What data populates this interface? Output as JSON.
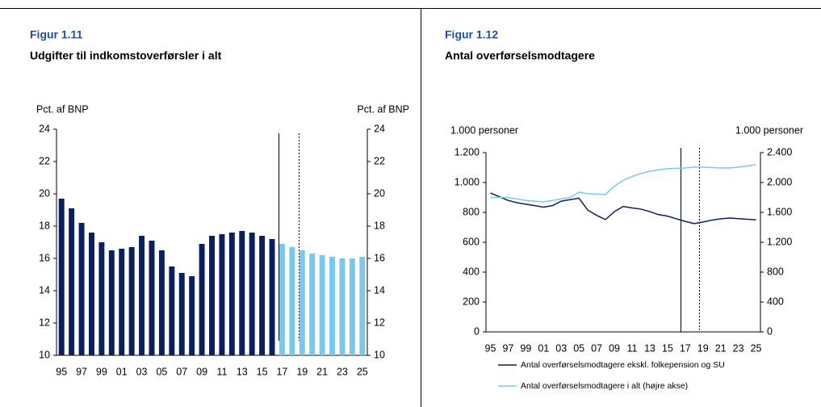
{
  "chart_data": [
    {
      "type": "bar",
      "label": "Figur 1.11",
      "title": "Udgifter til indkomstoverførsler i alt",
      "y_label": "Pct. af BNP",
      "y2_label": "Pct. af BNP",
      "categories": [
        "95",
        null,
        "97",
        null,
        "99",
        null,
        "01",
        null,
        "03",
        null,
        "05",
        null,
        "07",
        null,
        "09",
        null,
        "11",
        null,
        "13",
        null,
        "15",
        null,
        "17",
        null,
        "19",
        null,
        "21",
        null,
        "23",
        null,
        "25"
      ],
      "values": [
        19.7,
        19.1,
        18.2,
        17.6,
        17.0,
        16.5,
        16.6,
        16.7,
        17.4,
        17.1,
        16.5,
        15.5,
        15.1,
        14.9,
        16.9,
        17.4,
        17.5,
        17.6,
        17.7,
        17.6,
        17.4,
        17.2,
        16.9,
        16.7,
        16.5,
        16.3,
        16.2,
        16.1,
        16.0,
        16.0,
        16.1
      ],
      "colors": [
        "#0b1f5e",
        "#0b1f5e",
        "#0b1f5e",
        "#0b1f5e",
        "#0b1f5e",
        "#0b1f5e",
        "#0b1f5e",
        "#0b1f5e",
        "#0b1f5e",
        "#0b1f5e",
        "#0b1f5e",
        "#0b1f5e",
        "#0b1f5e",
        "#0b1f5e",
        "#0b1f5e",
        "#0b1f5e",
        "#0b1f5e",
        "#0b1f5e",
        "#0b1f5e",
        "#0b1f5e",
        "#0b1f5e",
        "#0b1f5e",
        "#7cc8ea",
        "#7cc8ea",
        "#7cc8ea",
        "#7cc8ea",
        "#7cc8ea",
        "#7cc8ea",
        "#7cc8ea",
        "#7cc8ea",
        "#7cc8ea"
      ],
      "ylim": [
        10,
        24
      ],
      "yticks": [
        10,
        12,
        14,
        16,
        18,
        20,
        22,
        24
      ],
      "y2lim": [
        10,
        24
      ],
      "y2ticks": [
        10,
        12,
        14,
        16,
        18,
        20,
        22,
        24
      ]
    },
    {
      "type": "line",
      "label": "Figur 1.12",
      "title": "Antal overførselsmodtagere",
      "y_label": "1.000 personer",
      "y2_label": "1.000 personer",
      "categories": [
        "95",
        null,
        "97",
        null,
        "99",
        null,
        "01",
        null,
        "03",
        null,
        "05",
        null,
        "07",
        null,
        "09",
        null,
        "11",
        null,
        "13",
        null,
        "15",
        null,
        "17",
        null,
        "19",
        null,
        "21",
        null,
        "23",
        null,
        "25"
      ],
      "series": [
        {
          "name": "Antal overførselsmodtagere ekskl. folkepension og SU",
          "color": "#0b1f5e",
          "values": [
            930,
            905,
            880,
            865,
            855,
            845,
            835,
            845,
            875,
            885,
            895,
            815,
            780,
            752,
            805,
            840,
            830,
            822,
            805,
            785,
            775,
            757,
            740,
            725,
            735,
            748,
            757,
            762,
            758,
            754,
            750
          ]
        },
        {
          "name": "Antal overførselsmodtagere i alt (højre akse)",
          "color": "#7cc8ea",
          "axis": "y2",
          "values": [
            1800,
            1800,
            1800,
            1780,
            1760,
            1750,
            1740,
            1760,
            1780,
            1800,
            1870,
            1850,
            1845,
            1840,
            1950,
            2030,
            2080,
            2120,
            2150,
            2170,
            2185,
            2190,
            2195,
            2205,
            2205,
            2200,
            2195,
            2195,
            2205,
            2220,
            2240
          ]
        }
      ],
      "ylim": [
        0,
        1200
      ],
      "yticks": [
        0,
        200,
        400,
        600,
        800,
        {
          "value": 1000,
          "label": "1.000"
        },
        {
          "value": 1200,
          "label": "1.200"
        }
      ],
      "y2lim": [
        0,
        2400
      ],
      "y2ticks": [
        0,
        400,
        800,
        {
          "value": 1200,
          "label": "1.200"
        },
        {
          "value": 1600,
          "label": "1.600"
        },
        {
          "value": 2000,
          "label": "2.000"
        },
        {
          "value": 2400,
          "label": "2.400"
        }
      ]
    }
  ]
}
